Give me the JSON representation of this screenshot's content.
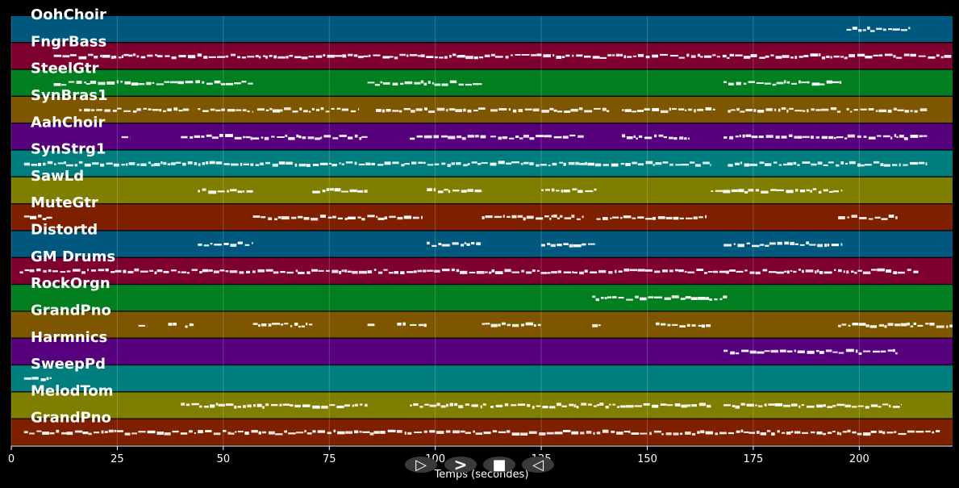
{
  "chart_data": {
    "type": "piano-roll",
    "xlabel": "Temps (secondes)",
    "xlim": [
      0,
      222
    ],
    "xticks": [
      0,
      25,
      50,
      75,
      100,
      125,
      150,
      175,
      200
    ],
    "grid": true,
    "tracks": [
      {
        "name": "OohChoir",
        "color": "#00587e",
        "segments": [
          [
            197,
            212
          ]
        ]
      },
      {
        "name": "FngrBass",
        "color": "#7e002e",
        "segments": [
          [
            10,
            222
          ]
        ]
      },
      {
        "name": "SteelGtr",
        "color": "#007e20",
        "segments": [
          [
            10,
            57
          ],
          [
            84,
            111
          ],
          [
            168,
            196
          ]
        ]
      },
      {
        "name": "SynBras1",
        "color": "#7e5600",
        "segments": [
          [
            16,
            42
          ],
          [
            44,
            57
          ],
          [
            58,
            82
          ],
          [
            86,
            112
          ],
          [
            113,
            141
          ],
          [
            144,
            166
          ],
          [
            169,
            196
          ],
          [
            197,
            216
          ]
        ]
      },
      {
        "name": "AahChoir",
        "color": "#56007e",
        "segments": [
          [
            26,
            28
          ],
          [
            40,
            84
          ],
          [
            94,
            112
          ],
          [
            113,
            135
          ],
          [
            144,
            160
          ],
          [
            168,
            216
          ]
        ]
      },
      {
        "name": "SynStrg1",
        "color": "#007e7e",
        "segments": [
          [
            3,
            165
          ],
          [
            169,
            216
          ]
        ]
      },
      {
        "name": "SawLd",
        "color": "#7e7e00",
        "segments": [
          [
            44,
            57
          ],
          [
            71,
            84
          ],
          [
            98,
            111
          ],
          [
            125,
            138
          ],
          [
            165,
            196
          ]
        ]
      },
      {
        "name": "MuteGtr",
        "color": "#7e2000",
        "segments": [
          [
            3,
            10
          ],
          [
            57,
            97
          ],
          [
            111,
            135
          ],
          [
            138,
            164
          ],
          [
            195,
            209
          ]
        ]
      },
      {
        "name": "Distortd",
        "color": "#00587e",
        "segments": [
          [
            44,
            57
          ],
          [
            98,
            111
          ],
          [
            125,
            138
          ],
          [
            168,
            196
          ]
        ]
      },
      {
        "name": "GM Drums",
        "color": "#7e002e",
        "segments": [
          [
            2,
            214
          ]
        ]
      },
      {
        "name": "RockOrgn",
        "color": "#007e20",
        "segments": [
          [
            137,
            169
          ]
        ]
      },
      {
        "name": "GrandPno",
        "color": "#7e5600",
        "segments": [
          [
            30,
            32
          ],
          [
            37,
            39
          ],
          [
            41,
            43
          ],
          [
            57,
            71
          ],
          [
            84,
            86
          ],
          [
            91,
            93
          ],
          [
            94,
            98
          ],
          [
            111,
            125
          ],
          [
            137,
            139
          ],
          [
            152,
            165
          ],
          [
            195,
            222
          ]
        ]
      },
      {
        "name": "Harmnics",
        "color": "#56007e",
        "segments": [
          [
            168,
            209
          ]
        ]
      },
      {
        "name": "SweepPd",
        "color": "#007e7e",
        "segments": [
          [
            3,
            10
          ]
        ]
      },
      {
        "name": "MelodTom",
        "color": "#7e7e00",
        "segments": [
          [
            40,
            84
          ],
          [
            94,
            112
          ],
          [
            113,
            165
          ],
          [
            168,
            210
          ]
        ]
      },
      {
        "name": "GrandPno",
        "color": "#7e2000",
        "segments": [
          [
            3,
            219
          ]
        ]
      }
    ]
  },
  "controls": {
    "play_icon": "▷",
    "forward_icon": ">",
    "stop_icon": "■",
    "rewind_icon": "◁"
  }
}
